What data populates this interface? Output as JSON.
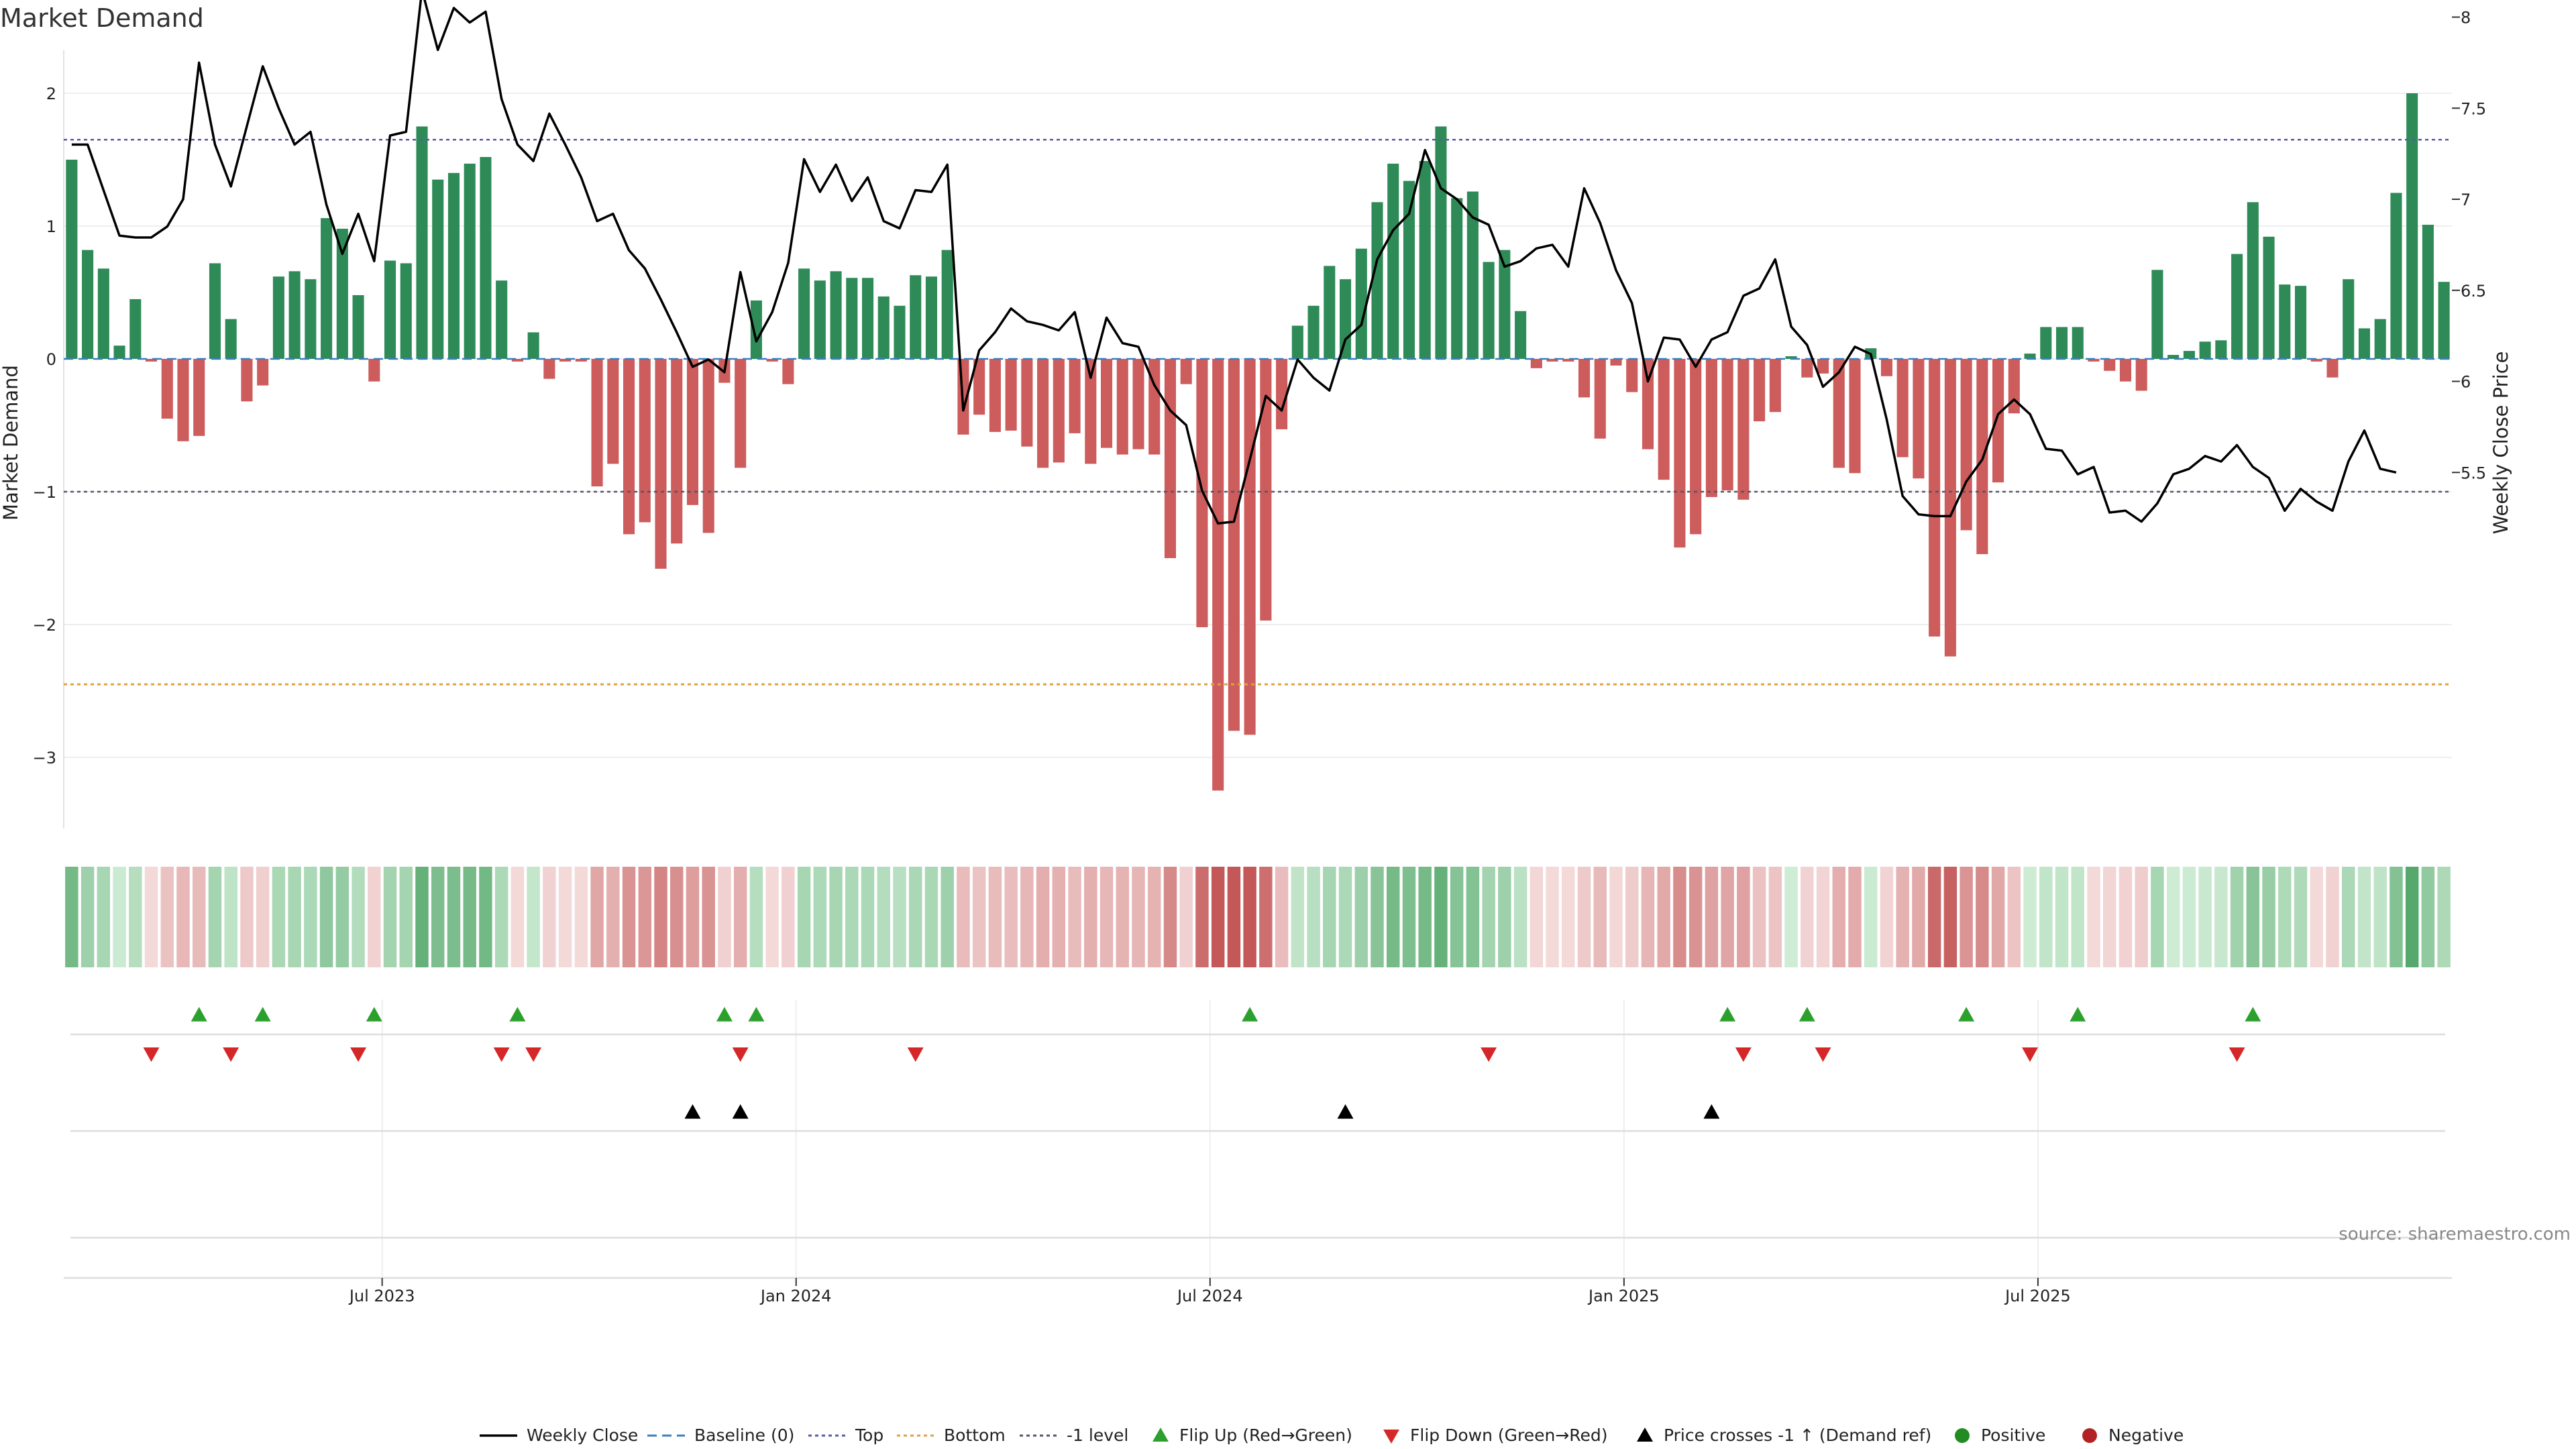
{
  "chart_data": {
    "type": "bar",
    "title": "Market Demand",
    "ylabel": "Market Demand",
    "y2label": "Weekly Close Price",
    "ylim": [
      -3.5,
      2.2
    ],
    "y2lim": [
      5.1,
      8.3
    ],
    "yticks": [
      "2",
      "1",
      "0",
      "−1",
      "−2",
      "−3"
    ],
    "yticks_values": [
      2,
      1,
      0,
      -1,
      -2,
      -3
    ],
    "y2ticks": [
      "8",
      "7.5",
      "7",
      "6.5",
      "6",
      "5.5"
    ],
    "y2ticks_values": [
      8,
      7.5,
      7,
      6.5,
      6,
      5.5
    ],
    "xticks": [
      "Jul 2023",
      "Jan 2024",
      "Jul 2024",
      "Jan 2025",
      "Jul 2025"
    ],
    "xticks_index": [
      20,
      46,
      72,
      98,
      124
    ],
    "reference_lines": {
      "baseline": 0,
      "top": 1.65,
      "bottom": -2.45,
      "minus_one": -1
    },
    "demand": [
      1.5,
      0.82,
      0.68,
      0.1,
      0.45,
      -0.02,
      -0.45,
      -0.62,
      -0.58,
      0.72,
      0.3,
      -0.32,
      -0.2,
      0.62,
      0.66,
      0.6,
      1.06,
      0.98,
      0.48,
      -0.17,
      0.74,
      0.72,
      1.75,
      1.35,
      1.4,
      1.47,
      1.52,
      0.59,
      -0.02,
      0.2,
      -0.15,
      -0.02,
      -0.02,
      -0.96,
      -0.79,
      -1.32,
      -1.23,
      -1.58,
      -1.39,
      -1.1,
      -1.31,
      -0.18,
      -0.82,
      0.44,
      -0.02,
      -0.19,
      0.68,
      0.59,
      0.66,
      0.61,
      0.61,
      0.47,
      0.4,
      0.63,
      0.62,
      0.82,
      -0.57,
      -0.42,
      -0.55,
      -0.54,
      -0.66,
      -0.82,
      -0.78,
      -0.56,
      -0.79,
      -0.67,
      -0.72,
      -0.68,
      -0.72,
      -1.5,
      -0.19,
      -2.02,
      -3.25,
      -2.8,
      -2.83,
      -1.97,
      -0.53,
      0.25,
      0.4,
      0.7,
      0.6,
      0.83,
      1.18,
      1.47,
      1.34,
      1.49,
      1.75,
      1.21,
      1.26,
      0.73,
      0.82,
      0.36,
      -0.07,
      -0.02,
      -0.02,
      -0.29,
      -0.6,
      -0.05,
      -0.25,
      -0.68,
      -0.91,
      -1.42,
      -1.32,
      -1.04,
      -0.99,
      -1.06,
      -0.47,
      -0.4,
      0.02,
      -0.14,
      -0.11,
      -0.82,
      -0.86,
      0.08,
      -0.13,
      -0.74,
      -0.9,
      -2.09,
      -2.24,
      -1.29,
      -1.47,
      -0.93,
      -0.41,
      0.04,
      0.24,
      0.24,
      0.24,
      -0.02,
      -0.09,
      -0.17,
      -0.24,
      0.67,
      0.03,
      0.06,
      0.13,
      0.14,
      0.79,
      1.18,
      0.92,
      0.56,
      0.55,
      -0.02,
      -0.14,
      0.6,
      0.23,
      0.3,
      1.25,
      2.0,
      1.01,
      0.58
    ],
    "weekly_close": [
      7.3,
      7.3,
      7.05,
      6.8,
      6.79,
      6.79,
      6.85,
      7.0,
      7.75,
      7.3,
      7.07,
      7.4,
      7.73,
      7.5,
      7.3,
      7.37,
      6.97,
      6.7,
      6.92,
      6.66,
      7.35,
      7.37,
      8.15,
      7.82,
      8.05,
      7.97,
      8.03,
      7.55,
      7.3,
      7.21,
      7.47,
      7.3,
      7.12,
      6.88,
      6.92,
      6.72,
      6.62,
      6.45,
      6.27,
      6.08,
      6.12,
      6.05,
      6.6,
      6.22,
      6.38,
      6.65,
      7.22,
      7.04,
      7.19,
      6.99,
      7.12,
      6.88,
      6.84,
      7.05,
      7.04,
      7.19,
      5.84,
      6.17,
      6.27,
      6.4,
      6.33,
      6.31,
      6.28,
      6.38,
      6.02,
      6.35,
      6.21,
      6.19,
      5.98,
      5.84,
      5.76,
      5.4,
      5.22,
      5.23,
      5.57,
      5.92,
      5.84,
      6.12,
      6.02,
      5.95,
      6.23,
      6.31,
      6.67,
      6.83,
      6.92,
      7.27,
      7.06,
      7.0,
      6.9,
      6.86,
      6.63,
      6.66,
      6.73,
      6.75,
      6.63,
      7.06,
      6.87,
      6.61,
      6.43,
      6.0,
      6.24,
      6.23,
      6.08,
      6.23,
      6.27,
      6.47,
      6.51,
      6.67,
      6.3,
      6.2,
      5.97,
      6.05,
      6.19,
      6.15,
      5.79,
      5.37,
      5.27,
      5.26,
      5.26,
      5.45,
      5.57,
      5.82,
      5.9,
      5.82,
      5.63,
      5.62,
      5.49,
      5.53,
      5.28,
      5.29,
      5.23,
      5.33,
      5.49,
      5.52,
      5.59,
      5.56,
      5.65,
      5.53,
      5.47,
      5.29,
      5.41,
      5.34,
      5.29,
      5.56,
      5.73,
      5.52,
      5.5
    ],
    "strip": {
      "description": "demand heat strip, one cell per week, colour intensity by demand value"
    },
    "signals": {
      "flip_up_index": [
        8,
        12,
        19,
        28,
        41,
        43,
        74,
        104,
        109,
        119,
        126,
        137
      ],
      "flip_down_index": [
        5,
        10,
        18,
        27,
        29,
        42,
        53,
        89,
        105,
        110,
        123,
        136
      ],
      "price_cross_index": [
        39,
        42,
        80,
        103
      ],
      "positive_index": [],
      "negative_index": []
    },
    "legend": [
      {
        "key": "weekly_close",
        "label": "Weekly Close"
      },
      {
        "key": "baseline",
        "label": "Baseline (0)"
      },
      {
        "key": "top",
        "label": "Top"
      },
      {
        "key": "bottom",
        "label": "Bottom"
      },
      {
        "key": "minus_one",
        "label": "-1 level"
      },
      {
        "key": "flip_up",
        "label": "Flip Up (Red→Green)"
      },
      {
        "key": "flip_down",
        "label": "Flip Down (Green→Red)"
      },
      {
        "key": "price_cross",
        "label": "Price crosses -1 ↑ (Demand ref)"
      },
      {
        "key": "positive",
        "label": "Positive"
      },
      {
        "key": "negative",
        "label": "Negative"
      }
    ],
    "source": "source: sharemaestro.com"
  },
  "colors": {
    "positive_bar": "#2e8b57",
    "negative_bar": "#cd5c5c",
    "price_line": "#000000",
    "baseline": "#3a7fbf",
    "top": "#5a5aa8",
    "bottom": "#e0a040",
    "minus_one": "#555566",
    "flip_up": "#2ca02c",
    "flip_down": "#d62728",
    "price_cross": "#000000",
    "positive_dot": "#228b22",
    "negative_dot": "#b22222"
  }
}
